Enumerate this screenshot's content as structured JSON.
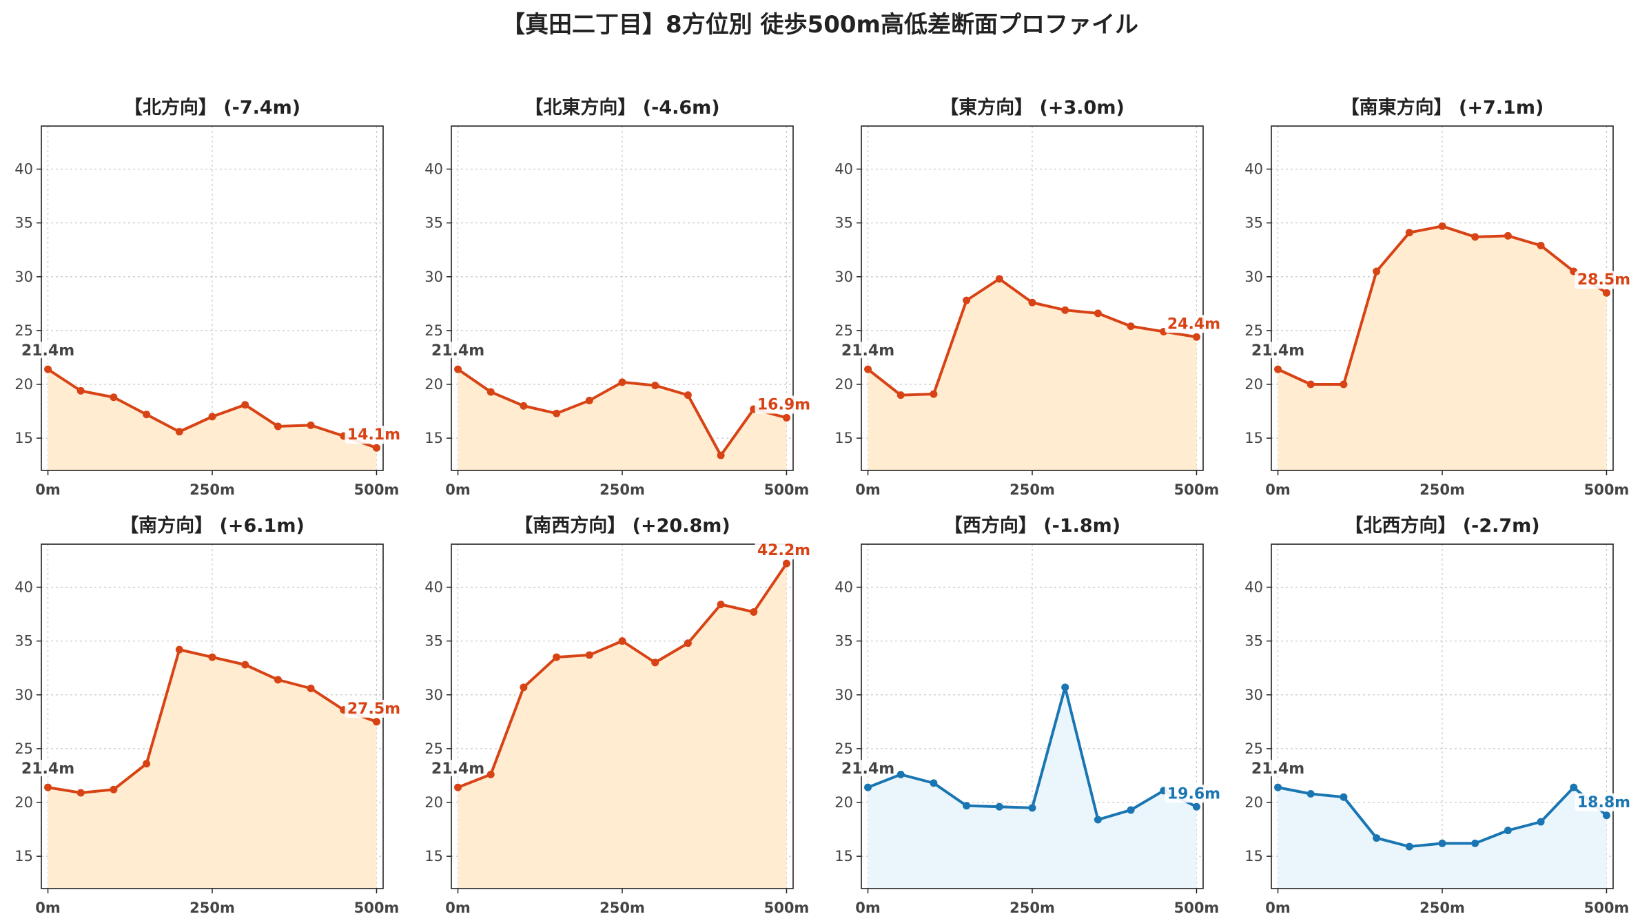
{
  "title": "【真田二丁目】8方位別 徒歩500m高低差断面プロファイル",
  "colors": {
    "up_line": "#D84315",
    "up_fill": "#FFECD1",
    "down_line": "#1976B3",
    "down_fill": "#EAF6FC",
    "grid": "#c8c8c8",
    "axis": "#222222"
  },
  "chart_data": [
    {
      "type": "area",
      "title": "【北方向】 (-7.4m)",
      "x": [
        0,
        50,
        100,
        150,
        200,
        250,
        300,
        350,
        400,
        450,
        500
      ],
      "values": [
        21.4,
        19.4,
        18.8,
        17.2,
        15.6,
        17.0,
        18.1,
        16.1,
        16.2,
        15.2,
        14.1
      ],
      "start_label": "21.4m",
      "end_label": "14.1m",
      "trend": "up",
      "xticks": [
        "0m",
        "250m",
        "500m"
      ],
      "yticks": [
        "15",
        "20",
        "25",
        "30",
        "35",
        "40"
      ],
      "ylim": [
        12,
        44
      ],
      "xlim": [
        -10,
        510
      ],
      "grid": true
    },
    {
      "type": "area",
      "title": "【北東方向】 (-4.6m)",
      "x": [
        0,
        50,
        100,
        150,
        200,
        250,
        300,
        350,
        400,
        450,
        500
      ],
      "values": [
        21.4,
        19.3,
        18.0,
        17.3,
        18.5,
        20.2,
        19.9,
        19.0,
        13.4,
        17.7,
        16.9
      ],
      "start_label": "21.4m",
      "end_label": "16.9m",
      "trend": "up",
      "xticks": [
        "0m",
        "250m",
        "500m"
      ],
      "yticks": [
        "15",
        "20",
        "25",
        "30",
        "35",
        "40"
      ],
      "ylim": [
        12,
        44
      ],
      "xlim": [
        -10,
        510
      ],
      "grid": true
    },
    {
      "type": "area",
      "title": "【東方向】 (+3.0m)",
      "x": [
        0,
        50,
        100,
        150,
        200,
        250,
        300,
        350,
        400,
        450,
        500
      ],
      "values": [
        21.4,
        19.0,
        19.1,
        27.8,
        29.8,
        27.6,
        26.9,
        26.6,
        25.4,
        24.9,
        24.4
      ],
      "start_label": "21.4m",
      "end_label": "24.4m",
      "trend": "up",
      "xticks": [
        "0m",
        "250m",
        "500m"
      ],
      "yticks": [
        "15",
        "20",
        "25",
        "30",
        "35",
        "40"
      ],
      "ylim": [
        12,
        44
      ],
      "xlim": [
        -10,
        510
      ],
      "grid": true
    },
    {
      "type": "area",
      "title": "【南東方向】 (+7.1m)",
      "x": [
        0,
        50,
        100,
        150,
        200,
        250,
        300,
        350,
        400,
        450,
        500
      ],
      "values": [
        21.4,
        20.0,
        20.0,
        30.5,
        34.1,
        34.7,
        33.7,
        33.8,
        32.9,
        30.5,
        28.5
      ],
      "start_label": "21.4m",
      "end_label": "28.5m",
      "trend": "up",
      "xticks": [
        "0m",
        "250m",
        "500m"
      ],
      "yticks": [
        "15",
        "20",
        "25",
        "30",
        "35",
        "40"
      ],
      "ylim": [
        12,
        44
      ],
      "xlim": [
        -10,
        510
      ],
      "grid": true
    },
    {
      "type": "area",
      "title": "【南方向】 (+6.1m)",
      "x": [
        0,
        50,
        100,
        150,
        200,
        250,
        300,
        350,
        400,
        450,
        500
      ],
      "values": [
        21.4,
        20.9,
        21.2,
        23.6,
        34.2,
        33.5,
        32.8,
        31.4,
        30.6,
        28.6,
        27.5
      ],
      "start_label": "21.4m",
      "end_label": "27.5m",
      "trend": "up",
      "xticks": [
        "0m",
        "250m",
        "500m"
      ],
      "yticks": [
        "15",
        "20",
        "25",
        "30",
        "35",
        "40"
      ],
      "ylim": [
        12,
        44
      ],
      "xlim": [
        -10,
        510
      ],
      "grid": true
    },
    {
      "type": "area",
      "title": "【南西方向】 (+20.8m)",
      "x": [
        0,
        50,
        100,
        150,
        200,
        250,
        300,
        350,
        400,
        450,
        500
      ],
      "values": [
        21.4,
        22.6,
        30.7,
        33.5,
        33.7,
        35.0,
        33.0,
        34.8,
        38.4,
        37.7,
        42.2
      ],
      "start_label": "21.4m",
      "end_label": "42.2m",
      "trend": "up",
      "xticks": [
        "0m",
        "250m",
        "500m"
      ],
      "yticks": [
        "15",
        "20",
        "25",
        "30",
        "35",
        "40"
      ],
      "ylim": [
        12,
        44
      ],
      "xlim": [
        -10,
        510
      ],
      "grid": true
    },
    {
      "type": "area",
      "title": "【西方向】 (-1.8m)",
      "x": [
        0,
        50,
        100,
        150,
        200,
        250,
        300,
        350,
        400,
        450,
        500
      ],
      "values": [
        21.4,
        22.6,
        21.8,
        19.7,
        19.6,
        19.5,
        30.7,
        18.4,
        19.3,
        21.1,
        19.6
      ],
      "start_label": "21.4m",
      "end_label": "19.6m",
      "trend": "down",
      "xticks": [
        "0m",
        "250m",
        "500m"
      ],
      "yticks": [
        "15",
        "20",
        "25",
        "30",
        "35",
        "40"
      ],
      "ylim": [
        12,
        44
      ],
      "xlim": [
        -10,
        510
      ],
      "grid": true
    },
    {
      "type": "area",
      "title": "【北西方向】 (-2.7m)",
      "x": [
        0,
        50,
        100,
        150,
        200,
        250,
        300,
        350,
        400,
        450,
        500
      ],
      "values": [
        21.4,
        20.8,
        20.5,
        16.7,
        15.9,
        16.2,
        16.2,
        17.4,
        18.2,
        21.4,
        18.8
      ],
      "start_label": "21.4m",
      "end_label": "18.8m",
      "trend": "down",
      "xticks": [
        "0m",
        "250m",
        "500m"
      ],
      "yticks": [
        "15",
        "20",
        "25",
        "30",
        "35",
        "40"
      ],
      "ylim": [
        12,
        44
      ],
      "xlim": [
        -10,
        510
      ],
      "grid": true
    }
  ]
}
